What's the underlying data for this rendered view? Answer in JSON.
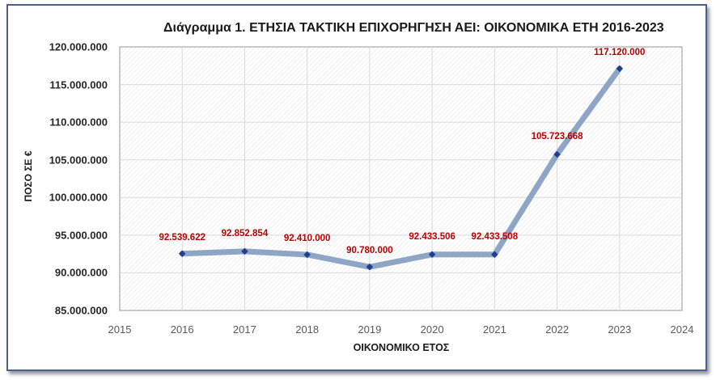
{
  "chart_data": {
    "type": "line",
    "title": "Διάγραμμα 1. ΕΤΗΣΙΑ ΤΑΚΤΙΚΗ ΕΠΙΧΟΡΗΓΗΣΗ ΑΕΙ: ΟΙΚΟΝΟΜΙΚΑ ΕΤΗ 2016-2023",
    "xlabel": "ΟΙΚΟΝΟΜΙΚΟ ΕΤΟΣ",
    "ylabel": "ΠΟΣΟ ΣΕ €",
    "x": [
      2016,
      2017,
      2018,
      2019,
      2020,
      2021,
      2022,
      2023
    ],
    "values": [
      92539622,
      92852854,
      92410000,
      90780000,
      92433506,
      92433508,
      105723668,
      117120000
    ],
    "data_labels": [
      "92.539.622",
      "92.852.854",
      "92.410.000",
      "90.780.000",
      "92.433.506",
      "92.433.508",
      "105.723.668",
      "117.120.000"
    ],
    "xlim": [
      2015,
      2024
    ],
    "ylim": [
      85000000,
      120000000
    ],
    "x_ticks": [
      "2015",
      "2016",
      "2017",
      "2018",
      "2019",
      "2020",
      "2021",
      "2022",
      "2023",
      "2024"
    ],
    "y_ticks": [
      "120.000.000",
      "115.000.000",
      "110.000.000",
      "105.000.000",
      "100.000.000",
      "95.000.000",
      "90.000.000",
      "85.000.000"
    ],
    "grid": true,
    "legend": null,
    "colors": {
      "line": "#8ea5c5",
      "marker": "#1f3f8f",
      "data_label": "#c00000",
      "frame": "#4a5f8a"
    }
  }
}
